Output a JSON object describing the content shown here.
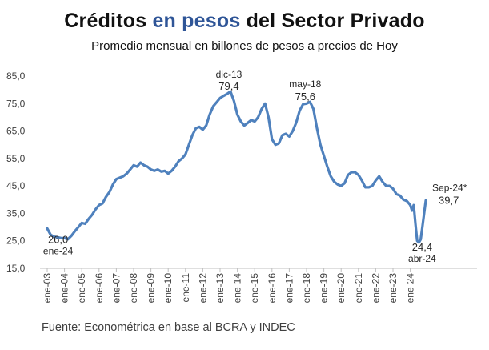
{
  "title": {
    "part1": "Créditos ",
    "part2": "en pesos",
    "part3": " del Sector Privado"
  },
  "subtitle": "Promedio mensual en billones de pesos a precios de Hoy",
  "source": "Fuente: Econométrica en base al BCRA y INDEC",
  "colors": {
    "title_accent": "#2F5597",
    "line": "#4F81BD"
  },
  "chart_data": {
    "type": "line",
    "title": "Créditos en pesos del Sector Privado",
    "subtitle": "Promedio mensual en billones de pesos a precios de Hoy",
    "xlabel": "",
    "ylabel": "",
    "ylim": [
      15,
      85
    ],
    "yticks": [
      "15,0",
      "25,0",
      "35,0",
      "45,0",
      "55,0",
      "65,0",
      "75,0",
      "85,0"
    ],
    "xticks": [
      "ene-03",
      "ene-04",
      "ene-05",
      "ene-06",
      "ene-07",
      "ene-08",
      "ene-09",
      "ene-10",
      "ene-11",
      "ene-12",
      "ene-13",
      "ene-14",
      "ene-15",
      "ene-16",
      "ene-17",
      "ene-18",
      "ene-19",
      "ene-20",
      "ene-21",
      "ene-22",
      "ene-23",
      "ene-24"
    ],
    "grid": false,
    "series": [
      {
        "points": [
          [
            2003.0,
            29.5
          ],
          [
            2003.2,
            27.2
          ],
          [
            2003.4,
            26.5
          ],
          [
            2003.6,
            26.3
          ],
          [
            2003.8,
            26.0
          ],
          [
            2004.0,
            26.0
          ],
          [
            2004.2,
            25.6
          ],
          [
            2004.4,
            26.8
          ],
          [
            2004.6,
            28.5
          ],
          [
            2004.8,
            30.0
          ],
          [
            2005.0,
            31.5
          ],
          [
            2005.2,
            31.2
          ],
          [
            2005.4,
            33.0
          ],
          [
            2005.6,
            34.5
          ],
          [
            2005.8,
            36.5
          ],
          [
            2006.0,
            38.0
          ],
          [
            2006.2,
            38.6
          ],
          [
            2006.4,
            41.0
          ],
          [
            2006.6,
            42.8
          ],
          [
            2006.8,
            45.5
          ],
          [
            2007.0,
            47.5
          ],
          [
            2007.2,
            48.0
          ],
          [
            2007.4,
            48.5
          ],
          [
            2007.6,
            49.5
          ],
          [
            2007.8,
            51.0
          ],
          [
            2008.0,
            52.5
          ],
          [
            2008.2,
            52.0
          ],
          [
            2008.4,
            53.5
          ],
          [
            2008.6,
            52.5
          ],
          [
            2008.8,
            52.0
          ],
          [
            2009.0,
            51.0
          ],
          [
            2009.2,
            50.5
          ],
          [
            2009.4,
            51.0
          ],
          [
            2009.6,
            50.2
          ],
          [
            2009.8,
            50.5
          ],
          [
            2010.0,
            49.5
          ],
          [
            2010.2,
            50.5
          ],
          [
            2010.4,
            52.0
          ],
          [
            2010.6,
            54.0
          ],
          [
            2010.8,
            55.0
          ],
          [
            2011.0,
            56.5
          ],
          [
            2011.2,
            60.0
          ],
          [
            2011.4,
            63.5
          ],
          [
            2011.6,
            66.0
          ],
          [
            2011.8,
            66.5
          ],
          [
            2012.0,
            65.5
          ],
          [
            2012.2,
            67.0
          ],
          [
            2012.4,
            71.0
          ],
          [
            2012.6,
            74.0
          ],
          [
            2012.8,
            75.5
          ],
          [
            2013.0,
            77.0
          ],
          [
            2013.2,
            77.8
          ],
          [
            2013.4,
            78.5
          ],
          [
            2013.6,
            79.4
          ],
          [
            2013.8,
            76.0
          ],
          [
            2014.0,
            71.0
          ],
          [
            2014.2,
            68.5
          ],
          [
            2014.4,
            67.0
          ],
          [
            2014.6,
            68.0
          ],
          [
            2014.8,
            69.0
          ],
          [
            2015.0,
            68.5
          ],
          [
            2015.2,
            70.0
          ],
          [
            2015.4,
            73.0
          ],
          [
            2015.6,
            75.0
          ],
          [
            2015.8,
            70.0
          ],
          [
            2016.0,
            62.0
          ],
          [
            2016.2,
            60.0
          ],
          [
            2016.4,
            60.5
          ],
          [
            2016.6,
            63.5
          ],
          [
            2016.8,
            64.0
          ],
          [
            2017.0,
            63.0
          ],
          [
            2017.2,
            65.0
          ],
          [
            2017.4,
            68.0
          ],
          [
            2017.6,
            72.5
          ],
          [
            2017.8,
            74.8
          ],
          [
            2018.0,
            75.0
          ],
          [
            2018.2,
            75.6
          ],
          [
            2018.4,
            73.0
          ],
          [
            2018.6,
            66.0
          ],
          [
            2018.8,
            60.0
          ],
          [
            2019.0,
            56.0
          ],
          [
            2019.2,
            52.0
          ],
          [
            2019.4,
            48.5
          ],
          [
            2019.6,
            46.5
          ],
          [
            2019.8,
            45.5
          ],
          [
            2020.0,
            45.0
          ],
          [
            2020.2,
            46.0
          ],
          [
            2020.4,
            49.0
          ],
          [
            2020.6,
            50.0
          ],
          [
            2020.8,
            50.0
          ],
          [
            2021.0,
            49.0
          ],
          [
            2021.2,
            47.0
          ],
          [
            2021.4,
            44.5
          ],
          [
            2021.6,
            44.5
          ],
          [
            2021.8,
            45.0
          ],
          [
            2022.0,
            47.0
          ],
          [
            2022.2,
            48.5
          ],
          [
            2022.4,
            46.5
          ],
          [
            2022.6,
            45.0
          ],
          [
            2022.8,
            45.0
          ],
          [
            2023.0,
            44.0
          ],
          [
            2023.2,
            42.0
          ],
          [
            2023.4,
            41.5
          ],
          [
            2023.6,
            40.0
          ],
          [
            2023.8,
            39.5
          ],
          [
            2024.0,
            38.0
          ],
          [
            2024.1,
            36.0
          ],
          [
            2024.2,
            38.0
          ],
          [
            2024.3,
            31.0
          ],
          [
            2024.4,
            25.0
          ],
          [
            2024.5,
            24.4
          ],
          [
            2024.6,
            25.5
          ],
          [
            2024.7,
            30.0
          ],
          [
            2024.8,
            35.0
          ],
          [
            2024.9,
            39.7
          ]
        ]
      }
    ],
    "annotations": [
      {
        "label": "dic-13",
        "value_text": "79,4",
        "x": 2013.6,
        "y": 79.4
      },
      {
        "label": "may-18",
        "value_text": "75,6",
        "x": 2018.2,
        "y": 75.6
      },
      {
        "label": "ene-24",
        "value_text": "26,0",
        "x": 2004.0,
        "y": 26.0
      },
      {
        "label": "abr-24",
        "value_text": "24,4",
        "x": 2024.5,
        "y": 24.4
      },
      {
        "label": "Sep-24*",
        "value_text": "39,7",
        "x": 2024.9,
        "y": 39.7
      }
    ]
  }
}
